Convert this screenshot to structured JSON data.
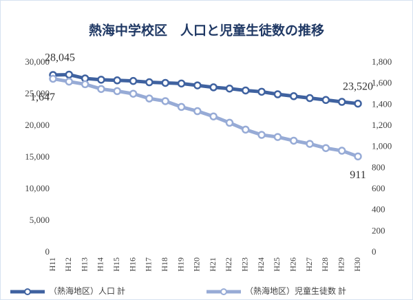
{
  "chart_data": {
    "type": "line",
    "title": "熱海中学校区　人口と児童生徒数の推移",
    "categories": [
      "H11",
      "H12",
      "H13",
      "H14",
      "H15",
      "H16",
      "H17",
      "H18",
      "H19",
      "H20",
      "H21",
      "H22",
      "H23",
      "H24",
      "H25",
      "H26",
      "H27",
      "H28",
      "H29",
      "H30"
    ],
    "series": [
      {
        "name": "（熱海地区）人口 計",
        "color": "#3f62a0",
        "values": [
          28045,
          28100,
          27500,
          27300,
          27200,
          27100,
          26900,
          26800,
          26700,
          26400,
          26100,
          25900,
          25600,
          25400,
          25000,
          24700,
          24400,
          24100,
          23800,
          23520
        ],
        "value_labels": [
          "28,045",
          null,
          null,
          null,
          null,
          null,
          null,
          null,
          null,
          null,
          null,
          null,
          null,
          null,
          null,
          null,
          null,
          null,
          null,
          "23,520"
        ]
      },
      {
        "name": "（熱海地区）児童生徒数 計",
        "color": "#97abd6",
        "axis": "y2",
        "values": [
          1647,
          1620,
          1595,
          1550,
          1530,
          1505,
          1460,
          1435,
          1380,
          1340,
          1290,
          1230,
          1165,
          1115,
          1095,
          1060,
          1030,
          990,
          965,
          911
        ],
        "value_labels": [
          "1,647",
          null,
          null,
          null,
          null,
          null,
          null,
          null,
          null,
          null,
          null,
          null,
          null,
          null,
          null,
          null,
          null,
          null,
          null,
          "911"
        ]
      }
    ],
    "ylim": [
      0,
      30000
    ],
    "yticks": [
      0,
      {
        "value": 5000,
        "label": "5,000"
      },
      {
        "value": 10000,
        "label": "10,000"
      },
      {
        "value": 15000,
        "label": "15,000"
      },
      {
        "value": 20000,
        "label": "20,000"
      },
      {
        "value": 25000,
        "label": "25,000"
      },
      {
        "value": 30000,
        "label": "30,000"
      }
    ],
    "y2lim": [
      0,
      1800
    ],
    "y2ticks": [
      0,
      200,
      400,
      600,
      800,
      {
        "value": 1000,
        "label": "1,000"
      },
      {
        "value": 1200,
        "label": "1,200"
      },
      {
        "value": 1400,
        "label": "1,400"
      },
      {
        "value": 1600,
        "label": "1,600"
      },
      {
        "value": 1800,
        "label": "1,800"
      }
    ],
    "legend": "bottom"
  }
}
